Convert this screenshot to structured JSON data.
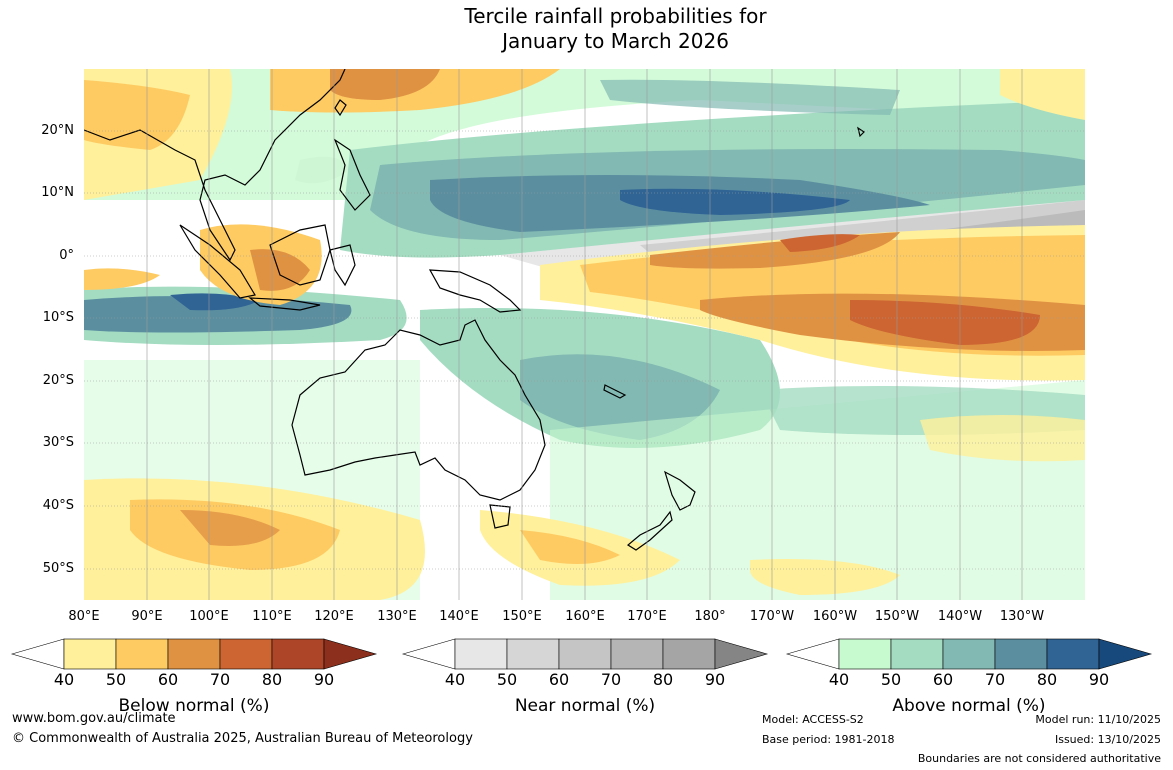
{
  "title": {
    "line1": "Tercile rainfall probabilities for",
    "line2": "January to March 2026"
  },
  "map": {
    "lat_labels": [
      "20°N",
      "10°N",
      "0°",
      "10°S",
      "20°S",
      "30°S",
      "40°S",
      "50°S"
    ],
    "lon_labels": [
      "80°E",
      "90°E",
      "100°E",
      "110°E",
      "120°E",
      "130°E",
      "140°E",
      "150°E",
      "160°E",
      "170°E",
      "180°",
      "170°W",
      "160°W",
      "150°W",
      "140°W",
      "130°W"
    ]
  },
  "legends": {
    "below": {
      "title": "Below normal (%)",
      "ticks": [
        "40",
        "50",
        "60",
        "70",
        "80",
        "90"
      ],
      "colors": [
        "#fff09b",
        "#fecb63",
        "#e09243",
        "#cc6532",
        "#ad4628",
        "#8c2f1c"
      ]
    },
    "near": {
      "title": "Near normal (%)",
      "ticks": [
        "40",
        "50",
        "60",
        "70",
        "80",
        "90"
      ],
      "colors": [
        "#e7e7e7",
        "#d6d6d6",
        "#c5c5c5",
        "#b5b5b5",
        "#a5a5a5",
        "#858585"
      ]
    },
    "above": {
      "title": "Above normal (%)",
      "ticks": [
        "40",
        "50",
        "60",
        "70",
        "80",
        "90"
      ],
      "colors": [
        "#c8fad0",
        "#a4dcc2",
        "#82b9b2",
        "#5b8fa0",
        "#306495",
        "#17497c"
      ]
    }
  },
  "footer": {
    "url": "www.bom.gov.au/climate",
    "copyright": "© Commonwealth of Australia 2025, Australian Bureau of Meteorology",
    "model": "Model: ACCESS-S2",
    "base_period": "Base period: 1981-2018",
    "model_run": "Model run: 11/10/2025",
    "issued": "Issued: 13/10/2025",
    "disclaimer": "Boundaries are not considered authoritative"
  }
}
